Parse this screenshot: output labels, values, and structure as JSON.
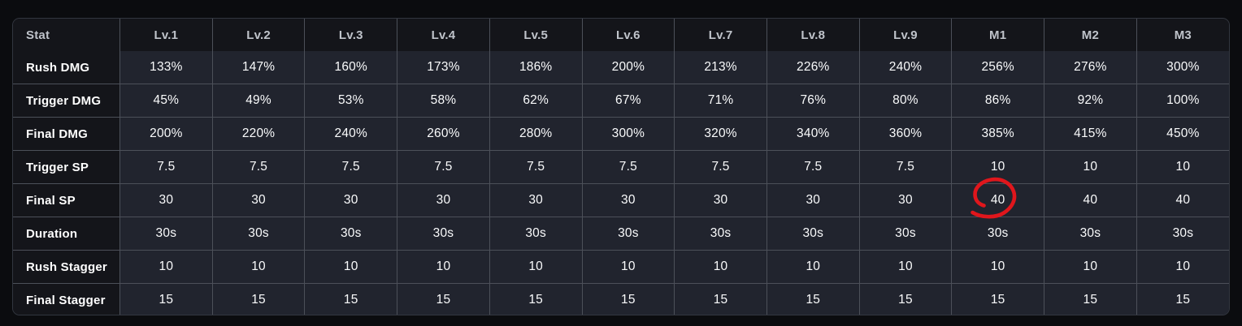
{
  "colors": {
    "page_background": "#0b0c0f",
    "header_background": "#14151a",
    "cell_background": "#21242e",
    "grid_line": "#4c5059",
    "header_text": "#bfc3ca",
    "body_text": "#ffffff",
    "annotation_red": "#e0161c"
  },
  "table": {
    "columns": [
      "Stat",
      "Lv.1",
      "Lv.2",
      "Lv.3",
      "Lv.4",
      "Lv.5",
      "Lv.6",
      "Lv.7",
      "Lv.8",
      "Lv.9",
      "M1",
      "M2",
      "M3"
    ],
    "rows": [
      {
        "label": "Rush DMG",
        "values": [
          "133%",
          "147%",
          "160%",
          "173%",
          "186%",
          "200%",
          "213%",
          "226%",
          "240%",
          "256%",
          "276%",
          "300%"
        ]
      },
      {
        "label": "Trigger DMG",
        "values": [
          "45%",
          "49%",
          "53%",
          "58%",
          "62%",
          "67%",
          "71%",
          "76%",
          "80%",
          "86%",
          "92%",
          "100%"
        ]
      },
      {
        "label": "Final DMG",
        "values": [
          "200%",
          "220%",
          "240%",
          "260%",
          "280%",
          "300%",
          "320%",
          "340%",
          "360%",
          "385%",
          "415%",
          "450%"
        ]
      },
      {
        "label": "Trigger SP",
        "values": [
          "7.5",
          "7.5",
          "7.5",
          "7.5",
          "7.5",
          "7.5",
          "7.5",
          "7.5",
          "7.5",
          "10",
          "10",
          "10"
        ]
      },
      {
        "label": "Final SP",
        "values": [
          "30",
          "30",
          "30",
          "30",
          "30",
          "30",
          "30",
          "30",
          "30",
          "40",
          "40",
          "40"
        ]
      },
      {
        "label": "Duration",
        "values": [
          "30s",
          "30s",
          "30s",
          "30s",
          "30s",
          "30s",
          "30s",
          "30s",
          "30s",
          "30s",
          "30s",
          "30s"
        ]
      },
      {
        "label": "Rush Stagger",
        "values": [
          "10",
          "10",
          "10",
          "10",
          "10",
          "10",
          "10",
          "10",
          "10",
          "10",
          "10",
          "10"
        ]
      },
      {
        "label": "Final Stagger",
        "values": [
          "15",
          "15",
          "15",
          "15",
          "15",
          "15",
          "15",
          "15",
          "15",
          "15",
          "15",
          "15"
        ]
      }
    ]
  },
  "annotation": {
    "type": "hand-drawn-circle",
    "row": "Final SP",
    "column": "M1",
    "circled_value": "40",
    "color": "#e0161c"
  }
}
